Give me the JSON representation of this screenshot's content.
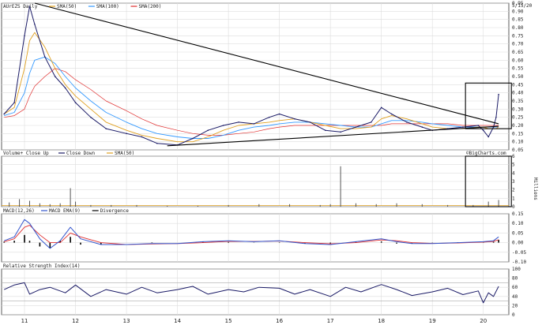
{
  "chart_data": [
    {
      "type": "line",
      "panel": "price",
      "title": "AUrEZS Daily",
      "date": "5/15/20",
      "legend": [
        "SMA(50)",
        "SMA(100)",
        "SMA(200)"
      ],
      "colors": {
        "price": "#1a1a66",
        "sma50": "#e0a020",
        "sma100": "#3399ff",
        "sma200": "#e03030",
        "trend": "#000000"
      },
      "ylim": [
        0.05,
        0.95
      ],
      "yticks": [
        "0.95",
        "0.90",
        "0.85",
        "0.80",
        "0.75",
        "0.70",
        "0.65",
        "0.60",
        "0.55",
        "0.50",
        "0.45",
        "0.40",
        "0.35",
        "0.30",
        "0.25",
        "0.20",
        "0.15",
        "0.10",
        "0.05"
      ],
      "ytick_values": [
        0.95,
        0.9,
        0.85,
        0.8,
        0.75,
        0.7,
        0.65,
        0.6,
        0.55,
        0.5,
        0.45,
        0.4,
        0.35,
        0.3,
        0.25,
        0.2,
        0.15,
        0.1,
        0.05
      ],
      "x": [
        10.6,
        10.8,
        11.0,
        11.1,
        11.2,
        11.4,
        11.6,
        11.8,
        12.0,
        12.3,
        12.6,
        13.0,
        13.3,
        13.6,
        14.0,
        14.3,
        14.6,
        14.9,
        15.2,
        15.5,
        15.8,
        16.0,
        16.3,
        16.6,
        16.9,
        17.2,
        17.5,
        17.8,
        18.0,
        18.2,
        18.5,
        18.8,
        19.0,
        19.3,
        19.6,
        19.9,
        20.0,
        20.1,
        20.2,
        20.25,
        20.3
      ],
      "close": [
        0.27,
        0.34,
        0.75,
        0.93,
        0.82,
        0.62,
        0.5,
        0.43,
        0.34,
        0.25,
        0.18,
        0.15,
        0.13,
        0.09,
        0.08,
        0.12,
        0.17,
        0.2,
        0.22,
        0.21,
        0.25,
        0.27,
        0.24,
        0.22,
        0.17,
        0.16,
        0.19,
        0.22,
        0.31,
        0.27,
        0.22,
        0.19,
        0.17,
        0.18,
        0.19,
        0.2,
        0.17,
        0.13,
        0.19,
        0.25,
        0.39
      ],
      "sma50": [
        0.27,
        0.31,
        0.55,
        0.72,
        0.77,
        0.68,
        0.55,
        0.45,
        0.38,
        0.3,
        0.22,
        0.17,
        0.14,
        0.12,
        0.1,
        0.1,
        0.13,
        0.17,
        0.2,
        0.21,
        0.22,
        0.23,
        0.24,
        0.22,
        0.2,
        0.18,
        0.18,
        0.19,
        0.24,
        0.26,
        0.24,
        0.21,
        0.19,
        0.18,
        0.18,
        0.19,
        0.19,
        0.18,
        0.18,
        0.18,
        0.19
      ],
      "sma100": [
        0.26,
        0.28,
        0.4,
        0.52,
        0.6,
        0.62,
        0.58,
        0.5,
        0.43,
        0.35,
        0.28,
        0.22,
        0.18,
        0.15,
        0.13,
        0.12,
        0.12,
        0.14,
        0.17,
        0.19,
        0.2,
        0.21,
        0.22,
        0.22,
        0.21,
        0.2,
        0.19,
        0.19,
        0.21,
        0.23,
        0.23,
        0.22,
        0.21,
        0.2,
        0.19,
        0.19,
        0.19,
        0.19,
        0.19,
        0.19,
        0.19
      ],
      "sma200": [
        0.25,
        0.26,
        0.3,
        0.38,
        0.44,
        0.5,
        0.55,
        0.53,
        0.48,
        0.42,
        0.35,
        0.29,
        0.24,
        0.2,
        0.17,
        0.15,
        0.14,
        0.14,
        0.15,
        0.16,
        0.18,
        0.19,
        0.2,
        0.2,
        0.2,
        0.2,
        0.2,
        0.2,
        0.2,
        0.21,
        0.21,
        0.21,
        0.21,
        0.21,
        0.2,
        0.2,
        0.2,
        0.2,
        0.2,
        0.2,
        0.2
      ],
      "trendlines": [
        {
          "from": [
            11.2,
            0.95
          ],
          "to": [
            20.3,
            0.21
          ]
        },
        {
          "from": [
            13.8,
            0.075
          ],
          "to": [
            20.3,
            0.195
          ]
        }
      ],
      "highlight_box": {
        "x": [
          19.65,
          20.55
        ],
        "y": [
          0.18,
          0.46
        ]
      }
    },
    {
      "type": "bar",
      "panel": "volume",
      "title": "Volume+ Close Up",
      "legend": [
        "Close Down",
        "SMA(50)"
      ],
      "ylim": [
        0,
        6
      ],
      "yticks": [
        "6",
        "5",
        "4",
        "3",
        "2",
        "1",
        "0"
      ],
      "ytick_values": [
        6,
        5,
        4,
        3,
        2,
        1,
        0
      ],
      "unit_label": "Millions",
      "x": [
        10.7,
        10.9,
        11.1,
        11.3,
        11.5,
        11.7,
        11.9,
        12.0,
        12.3,
        12.7,
        13.2,
        13.8,
        14.4,
        15.0,
        15.6,
        16.2,
        16.8,
        17.0,
        17.2,
        17.5,
        17.9,
        18.3,
        18.8,
        19.3,
        19.8,
        20.1,
        20.3
      ],
      "values": [
        0.5,
        0.9,
        0.7,
        0.4,
        0.3,
        0.4,
        2.2,
        0.6,
        0.2,
        0.2,
        0.2,
        0.1,
        0.1,
        0.2,
        0.3,
        0.3,
        0.2,
        0.3,
        4.8,
        0.4,
        0.3,
        0.4,
        0.3,
        0.2,
        0.2,
        0.6,
        0.8
      ],
      "highlight_box": {
        "x": [
          19.65,
          20.55
        ],
        "y": [
          0,
          6
        ]
      }
    },
    {
      "type": "line",
      "panel": "macd",
      "title": "MACD(12,26)",
      "legend": [
        "MACD EMA(9)",
        "Divergence"
      ],
      "ylim": [
        -0.1,
        0.15
      ],
      "yticks": [
        "0.15",
        "0.10",
        "0.05",
        "0.00",
        "-0.05",
        "-0.10"
      ],
      "ytick_values": [
        0.15,
        0.1,
        0.05,
        0.0,
        -0.05,
        -0.1
      ],
      "x": [
        10.6,
        10.8,
        11.0,
        11.1,
        11.3,
        11.5,
        11.7,
        11.9,
        12.1,
        12.5,
        13.0,
        13.5,
        14.0,
        14.5,
        15.0,
        15.5,
        16.0,
        16.5,
        17.0,
        17.5,
        18.0,
        18.3,
        18.6,
        19.0,
        19.5,
        20.0,
        20.2,
        20.3
      ],
      "macd": [
        0.01,
        0.03,
        0.12,
        0.1,
        0.02,
        -0.03,
        0.01,
        0.08,
        0.02,
        -0.01,
        -0.01,
        -0.005,
        -0.005,
        0.005,
        0.01,
        0.005,
        0.01,
        -0.005,
        -0.01,
        0.005,
        0.02,
        0.005,
        -0.005,
        -0.005,
        0.0,
        0.005,
        0.01,
        0.03
      ],
      "signal": [
        0.005,
        0.02,
        0.08,
        0.09,
        0.04,
        0.0,
        0.0,
        0.05,
        0.03,
        0.0,
        -0.01,
        -0.007,
        -0.005,
        0.0,
        0.007,
        0.006,
        0.008,
        0.0,
        -0.006,
        0.0,
        0.014,
        0.01,
        0.0,
        -0.004,
        -0.002,
        0.003,
        0.006,
        0.015
      ]
    },
    {
      "type": "line",
      "panel": "rsi",
      "title": "Relative Strength Index(14)",
      "ylim": [
        0,
        100
      ],
      "yticks": [
        "100",
        "80",
        "60",
        "40",
        "20",
        "0"
      ],
      "ytick_values": [
        100,
        80,
        60,
        40,
        20,
        0
      ],
      "x": [
        10.6,
        10.8,
        11.0,
        11.1,
        11.3,
        11.5,
        11.8,
        12.0,
        12.3,
        12.6,
        13.0,
        13.3,
        13.6,
        14.0,
        14.3,
        14.6,
        15.0,
        15.3,
        15.6,
        16.0,
        16.3,
        16.6,
        17.0,
        17.3,
        17.6,
        18.0,
        18.3,
        18.6,
        19.0,
        19.3,
        19.6,
        19.9,
        20.0,
        20.1,
        20.2,
        20.3
      ],
      "values": [
        55,
        65,
        70,
        45,
        55,
        60,
        48,
        65,
        40,
        55,
        45,
        60,
        48,
        55,
        62,
        45,
        55,
        50,
        60,
        58,
        45,
        55,
        40,
        60,
        50,
        66,
        55,
        42,
        50,
        58,
        44,
        52,
        26,
        48,
        40,
        62
      ],
      "hlines": [
        30,
        70
      ]
    }
  ],
  "x_axis": {
    "labels": [
      "11",
      "12",
      "13",
      "14",
      "15",
      "16",
      "17",
      "18",
      "19",
      "20"
    ],
    "positions": [
      11,
      12,
      13,
      14,
      15,
      16,
      17,
      18,
      19,
      20
    ],
    "range": [
      10.55,
      20.5
    ]
  },
  "watermark": "©BigCharts.com"
}
